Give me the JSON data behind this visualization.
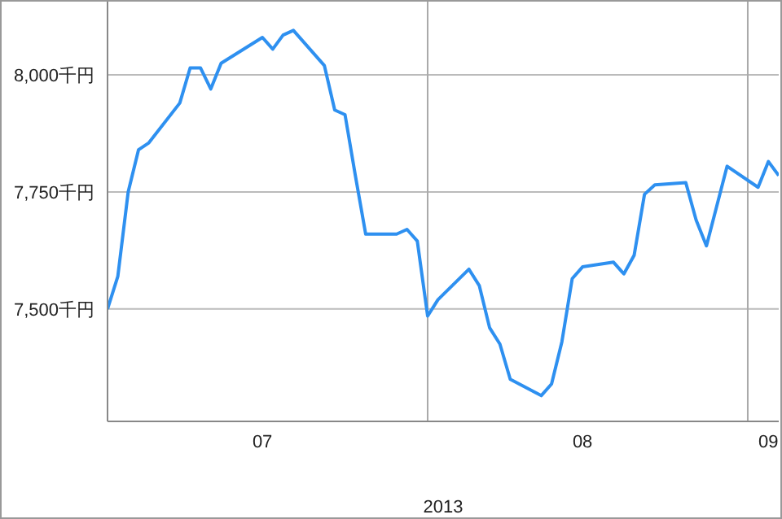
{
  "chart_data": {
    "type": "line",
    "xlabel": "2013",
    "x": [
      "2013-07-01",
      "2013-07-02",
      "2013-07-03",
      "2013-07-04",
      "2013-07-05",
      "2013-07-08",
      "2013-07-09",
      "2013-07-10",
      "2013-07-11",
      "2013-07-12",
      "2013-07-16",
      "2013-07-17",
      "2013-07-18",
      "2013-07-19",
      "2013-07-22",
      "2013-07-23",
      "2013-07-24",
      "2013-07-25",
      "2013-07-26",
      "2013-07-29",
      "2013-07-30",
      "2013-07-31",
      "2013-08-01",
      "2013-08-02",
      "2013-08-05",
      "2013-08-06",
      "2013-08-07",
      "2013-08-08",
      "2013-08-09",
      "2013-08-12",
      "2013-08-13",
      "2013-08-14",
      "2013-08-15",
      "2013-08-16",
      "2013-08-19",
      "2013-08-20",
      "2013-08-21",
      "2013-08-22",
      "2013-08-23",
      "2013-08-26",
      "2013-08-27",
      "2013-08-28",
      "2013-08-29",
      "2013-08-30",
      "2013-09-02",
      "2013-09-03",
      "2013-09-04"
    ],
    "series": [
      {
        "color": "#2e90f0",
        "values": [
          7500,
          7570,
          7750,
          7840,
          7855,
          7940,
          8015,
          8015,
          7970,
          8025,
          8080,
          8055,
          8085,
          8095,
          8020,
          7925,
          7915,
          7785,
          7660,
          7660,
          7670,
          7645,
          7485,
          7520,
          7585,
          7550,
          7460,
          7425,
          7350,
          7315,
          7340,
          7430,
          7565,
          7590,
          7600,
          7575,
          7615,
          7745,
          7765,
          7770,
          7690,
          7635,
          7720,
          7805,
          7760,
          7815,
          7785
        ]
      }
    ],
    "xlim": [
      "2013-07-01",
      "2013-09-04"
    ],
    "xticks": [
      {
        "value": "2013-07-01",
        "label": null
      },
      {
        "value": "2013-07-16",
        "label": "07"
      },
      {
        "value": "2013-08-01",
        "label": null
      },
      {
        "value": "2013-08-16",
        "label": "08"
      },
      {
        "value": "2013-09-01",
        "label": null
      },
      {
        "value": "2013-09-03",
        "label": "09"
      }
    ],
    "ylim": [
      7260,
      8160
    ],
    "yticks": [
      {
        "value": 7500,
        "label": "7,500千円"
      },
      {
        "value": 7750,
        "label": "7,750千円"
      },
      {
        "value": 8000,
        "label": "8,000千円"
      }
    ],
    "grid": true,
    "legend": false,
    "marker": "none",
    "line_style": "solid"
  }
}
